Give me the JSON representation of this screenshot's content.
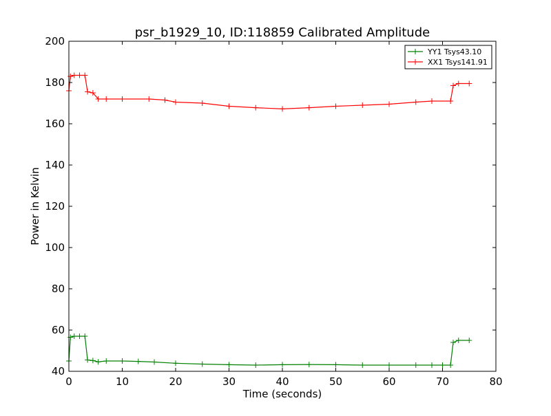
{
  "chart_data": {
    "type": "line",
    "title": "psr_b1929_10, ID:118859 Calibrated Amplitude",
    "xlabel": "Time (seconds)",
    "ylabel": "Power in Kelvin",
    "xlim": [
      0,
      80
    ],
    "ylim": [
      40,
      200
    ],
    "xticks": [
      0,
      10,
      20,
      30,
      40,
      50,
      60,
      70,
      80
    ],
    "yticks": [
      40,
      60,
      80,
      100,
      120,
      140,
      160,
      180,
      200
    ],
    "grid": false,
    "legend_position": "top-right",
    "marker": "+",
    "series": [
      {
        "name": "YY1 Tsys43.10",
        "color": "#008000",
        "points": [
          [
            0.0,
            45.0
          ],
          [
            0.3,
            56.5
          ],
          [
            1.0,
            57.0
          ],
          [
            2.0,
            57.0
          ],
          [
            3.0,
            57.0
          ],
          [
            3.5,
            45.5
          ],
          [
            4.5,
            45.2
          ],
          [
            5.5,
            44.6
          ],
          [
            7.0,
            45.0
          ],
          [
            10.0,
            45.0
          ],
          [
            13.0,
            44.8
          ],
          [
            16.0,
            44.5
          ],
          [
            20.0,
            43.9
          ],
          [
            25.0,
            43.5
          ],
          [
            30.0,
            43.2
          ],
          [
            35.0,
            43.0
          ],
          [
            40.0,
            43.2
          ],
          [
            45.0,
            43.3
          ],
          [
            50.0,
            43.2
          ],
          [
            55.0,
            43.0
          ],
          [
            60.0,
            43.0
          ],
          [
            65.0,
            43.0
          ],
          [
            68.0,
            43.0
          ],
          [
            70.0,
            43.0
          ],
          [
            71.5,
            43.0
          ],
          [
            72.0,
            54.0
          ],
          [
            73.0,
            55.0
          ],
          [
            75.0,
            55.0
          ]
        ]
      },
      {
        "name": "XX1 Tsys141.91",
        "color": "#ff0000",
        "points": [
          [
            0.0,
            176.0
          ],
          [
            0.3,
            183.0
          ],
          [
            1.0,
            183.5
          ],
          [
            2.0,
            183.5
          ],
          [
            3.0,
            183.5
          ],
          [
            3.5,
            175.5
          ],
          [
            4.5,
            175.0
          ],
          [
            5.5,
            172.0
          ],
          [
            7.0,
            172.0
          ],
          [
            10.0,
            172.0
          ],
          [
            15.0,
            172.0
          ],
          [
            18.0,
            171.5
          ],
          [
            20.0,
            170.5
          ],
          [
            25.0,
            170.0
          ],
          [
            30.0,
            168.5
          ],
          [
            35.0,
            167.8
          ],
          [
            40.0,
            167.2
          ],
          [
            45.0,
            167.8
          ],
          [
            50.0,
            168.5
          ],
          [
            55.0,
            169.0
          ],
          [
            60.0,
            169.5
          ],
          [
            65.0,
            170.5
          ],
          [
            68.0,
            171.0
          ],
          [
            71.5,
            171.0
          ],
          [
            72.0,
            178.5
          ],
          [
            73.0,
            179.5
          ],
          [
            75.0,
            179.5
          ]
        ]
      }
    ]
  }
}
